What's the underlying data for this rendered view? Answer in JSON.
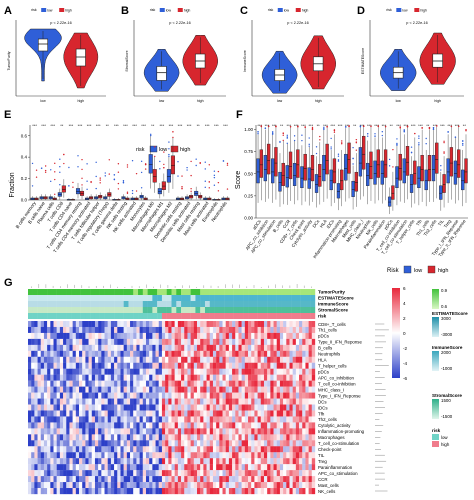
{
  "panels": {
    "a": {
      "letter": "A",
      "legend_title": "risk",
      "groups": [
        "low",
        "high"
      ],
      "pvalue": "p < 2.22e-16",
      "ylabel": "TumorPurity"
    },
    "b": {
      "letter": "B",
      "legend_title": "risk",
      "groups": [
        "low",
        "high"
      ],
      "pvalue": "p < 2.22e-16",
      "ylabel": "StromalScore"
    },
    "c": {
      "letter": "C",
      "legend_title": "risk",
      "groups": [
        "low",
        "high"
      ],
      "pvalue": "p < 2.22e-16",
      "ylabel": "ImmuneScore"
    },
    "d": {
      "letter": "D",
      "legend_title": "risk",
      "groups": [
        "low",
        "high"
      ],
      "pvalue": "p < 2.22e-16",
      "ylabel": "ESTIMATEScore"
    },
    "e": {
      "letter": "E",
      "legend_title": "risk",
      "legend": [
        "low",
        "high"
      ],
      "ylabel": "Fraction",
      "yticks": [
        "0.0",
        "0.2",
        "0.4",
        "0.6"
      ]
    },
    "f": {
      "letter": "F",
      "legend_title": "Risk",
      "legend": [
        "low",
        "high"
      ],
      "ylabel": "Score",
      "yticks": [
        "0.00",
        "0.25",
        "0.50",
        "0.75",
        "1.00"
      ]
    },
    "g": {
      "letter": "G"
    }
  },
  "colors": {
    "low": "#2f5fd8",
    "high": "#d7262e",
    "heat_high": "#e8283c",
    "heat_low": "#2c3fc8",
    "heat_mid": "#ffffff"
  },
  "chart_data": [
    {
      "type": "violin",
      "panel": "A",
      "categories": [
        "low",
        "high"
      ],
      "series": [
        {
          "name": "low",
          "median": 0.82,
          "q1": 0.75,
          "q3": 0.87,
          "min": 0.45,
          "max": 0.97
        },
        {
          "name": "high",
          "median": 0.69,
          "q1": 0.6,
          "q3": 0.77,
          "min": 0.38,
          "max": 0.93
        }
      ],
      "ylabel": "TumorPurity",
      "ylim": [
        0.3,
        1.0
      ],
      "annotation": "p < 2.22e-16"
    },
    {
      "type": "violin",
      "panel": "B",
      "categories": [
        "low",
        "high"
      ],
      "series": [
        {
          "name": "low",
          "median": -1000,
          "q1": -1500,
          "q3": -600,
          "min": -2200,
          "max": 500
        },
        {
          "name": "high",
          "median": -250,
          "q1": -700,
          "q3": 200,
          "min": -1800,
          "max": 1400
        }
      ],
      "ylabel": "StromalScore",
      "ylim": [
        -2500,
        2000
      ],
      "annotation": "p < 2.22e-16"
    },
    {
      "type": "violin",
      "panel": "C",
      "categories": [
        "low",
        "high"
      ],
      "series": [
        {
          "name": "low",
          "median": -500,
          "q1": -900,
          "q3": -100,
          "min": -1800,
          "max": 1200
        },
        {
          "name": "high",
          "median": 300,
          "q1": -200,
          "q3": 800,
          "min": -1500,
          "max": 2300
        }
      ],
      "ylabel": "ImmuneScore",
      "ylim": [
        -2000,
        3000
      ],
      "annotation": "p < 2.22e-16"
    },
    {
      "type": "violin",
      "panel": "D",
      "categories": [
        "low",
        "high"
      ],
      "series": [
        {
          "name": "low",
          "median": -1500,
          "q1": -2200,
          "q3": -800,
          "min": -3800,
          "max": 1500
        },
        {
          "name": "high",
          "median": 0,
          "q1": -800,
          "q3": 900,
          "min": -3000,
          "max": 3600
        }
      ],
      "ylabel": "ESTIMATEScore",
      "ylim": [
        -4500,
        4500
      ],
      "annotation": "p < 2.22e-16"
    },
    {
      "type": "box",
      "panel": "E",
      "categories": [
        "B cells memory",
        "B cells naive",
        "Plasma cells",
        "T cells CD8",
        "T cells CD4 naive",
        "T cells CD4 memory resting",
        "T cells CD4 memory activated",
        "T cells follicular helper",
        "T cells regulatory (Tregs)",
        "T cells gamma delta",
        "NK cells resting",
        "NK cells activated",
        "Monocytes",
        "Macrophages M0",
        "Macrophages M1",
        "Macrophages M2",
        "Dendritic cells resting",
        "Dendritic cells activated",
        "Mast cells resting",
        "Mast cells activated",
        "Eosinophils",
        "Neutrophils"
      ],
      "series": [
        {
          "name": "low",
          "values": [
            0.01,
            0.02,
            0.02,
            0.05,
            0.0,
            0.08,
            0.01,
            0.02,
            0.02,
            0.0,
            0.02,
            0.01,
            0.03,
            0.33,
            0.08,
            0.22,
            0.01,
            0.02,
            0.06,
            0.01,
            0.0,
            0.01
          ]
        },
        {
          "name": "high",
          "values": [
            0.01,
            0.02,
            0.01,
            0.1,
            0.0,
            0.06,
            0.02,
            0.03,
            0.05,
            0.0,
            0.01,
            0.01,
            0.01,
            0.22,
            0.13,
            0.32,
            0.01,
            0.03,
            0.03,
            0.01,
            0.0,
            0.01
          ]
        }
      ],
      "ylabel": "Fraction",
      "ylim": [
        0,
        0.7
      ]
    },
    {
      "type": "box",
      "panel": "F",
      "categories": [
        "aDCs",
        "APC_co_inhibition",
        "APC_co_stimulation",
        "B_cells",
        "CCR",
        "CD8+_T_cells",
        "Check-point",
        "Cytolytic_activity",
        "DCs",
        "HLA",
        "iDCs",
        "Inflammation-promoting",
        "Macrophages",
        "Mast_cells",
        "MHC_class_I",
        "Neutrophils",
        "NK_cells",
        "Parainflammation",
        "pDCs",
        "T_cell_co-inhibition",
        "T_cell_co-stimulation",
        "T_helper_cells",
        "Tfh",
        "Th1_cells",
        "Th2_cells",
        "TIL",
        "Treg",
        "Type_I_IFN_Reponse",
        "Type_II_IFN_Reponse"
      ],
      "series": [
        {
          "name": "low",
          "values": [
            0.52,
            0.55,
            0.52,
            0.4,
            0.46,
            0.48,
            0.45,
            0.44,
            0.38,
            0.55,
            0.42,
            0.3,
            0.56,
            0.32,
            0.62,
            0.48,
            0.5,
            0.5,
            0.18,
            0.45,
            0.52,
            0.38,
            0.45,
            0.42,
            0.55,
            0.28,
            0.52,
            0.5,
            0.42
          ]
        },
        {
          "name": "high",
          "values": [
            0.6,
            0.65,
            0.62,
            0.48,
            0.58,
            0.6,
            0.56,
            0.55,
            0.47,
            0.65,
            0.52,
            0.42,
            0.66,
            0.4,
            0.72,
            0.58,
            0.6,
            0.6,
            0.28,
            0.56,
            0.63,
            0.5,
            0.55,
            0.55,
            0.66,
            0.38,
            0.62,
            0.6,
            0.52
          ]
        }
      ],
      "ylabel": "Score",
      "ylim": [
        0,
        1.05
      ]
    },
    {
      "type": "heatmap",
      "panel": "G",
      "annotation_tracks": [
        "TumorPurity",
        "ESTIMATEScore",
        "ImmuneScore",
        "StromalScore",
        "risk"
      ],
      "rows": [
        "CD8+_T_cells",
        "Th1_cells",
        "pDCs",
        "Type_II_IFN_Reponse",
        "B_cells",
        "Neutrophils",
        "HLA",
        "T_helper_cells",
        "pDCs",
        "APC_co_inhibition",
        "T_cell_co-inhibition",
        "MHC_class_I",
        "Type_I_IFN_Reponse",
        "DCs",
        "iDCs",
        "Tfh",
        "Th2_cells",
        "Cytolytic_activity",
        "Inflammation-promoting",
        "Macrophages",
        "T_cell_co-stimulation",
        "Check-point",
        "TIL",
        "Treg",
        "Parainflammation",
        "APC_co_stimulation",
        "CCR",
        "Mast_cells",
        "NK_cells"
      ],
      "columns": [
        "low",
        "high"
      ],
      "legend": {
        "main": {
          "ticks": [
            "6",
            "4",
            "2",
            "0",
            "-2",
            "-4",
            "-6"
          ]
        },
        "TumorPurity": {
          "title": "TumorPurity",
          "ticks": [
            "0.9",
            "0.6"
          ]
        },
        "ESTIMATEScore": {
          "title": "ESTIMATEScore",
          "ticks": [
            "3000",
            "-3000"
          ]
        },
        "ImmuneScore": {
          "title": "ImmuneScore",
          "ticks": [
            "2000",
            "-1000"
          ]
        },
        "StromalScore": {
          "title": "StromalScore",
          "ticks": [
            "1500",
            "-1500"
          ]
        },
        "risk": {
          "title": "risk",
          "entries": [
            "low",
            "high"
          ]
        }
      }
    }
  ]
}
